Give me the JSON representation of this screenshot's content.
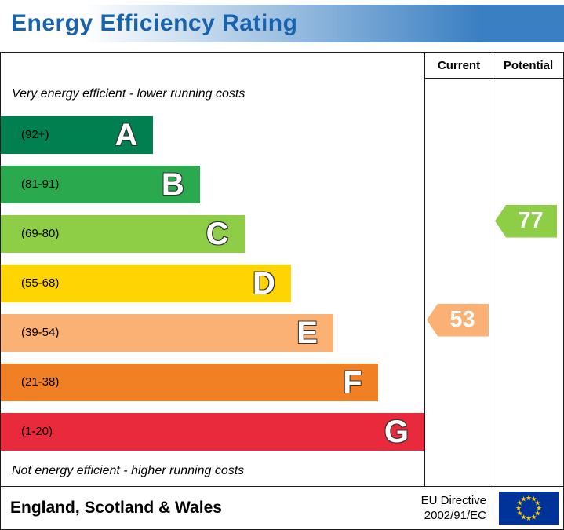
{
  "header": {
    "title": "Energy Efficiency Rating",
    "text_color": "#1763ad",
    "gradient_start": "#ffffff",
    "gradient_end": "#3a7fc2"
  },
  "table": {
    "columns": {
      "current": "Current",
      "potential": "Potential"
    },
    "top_note": "Very energy efficient - lower running costs",
    "bottom_note": "Not energy efficient - higher running costs"
  },
  "chart_data": {
    "type": "bar",
    "title": "Energy Efficiency Rating",
    "bands": [
      {
        "letter": "A",
        "range_label": "(92+)",
        "range": [
          92,
          100
        ],
        "color": "#008050",
        "width_pct": 36
      },
      {
        "letter": "B",
        "range_label": "(81-91)",
        "range": [
          81,
          91
        ],
        "color": "#2aa94f",
        "width_pct": 47
      },
      {
        "letter": "C",
        "range_label": "(69-80)",
        "range": [
          69,
          80
        ],
        "color": "#8dce46",
        "width_pct": 57.5
      },
      {
        "letter": "D",
        "range_label": "(55-68)",
        "range": [
          55,
          68
        ],
        "color": "#fed402",
        "width_pct": 68.5
      },
      {
        "letter": "E",
        "range_label": "(39-54)",
        "range": [
          39,
          54
        ],
        "color": "#fbb174",
        "width_pct": 78.5
      },
      {
        "letter": "F",
        "range_label": "(21-38)",
        "range": [
          21,
          38
        ],
        "color": "#f08023",
        "width_pct": 89
      },
      {
        "letter": "G",
        "range_label": "(1-20)",
        "range": [
          1,
          20
        ],
        "color": "#e9293c",
        "width_pct": 100
      }
    ],
    "current": {
      "value": 53,
      "band": "E",
      "color": "#fbb174"
    },
    "potential": {
      "value": 77,
      "band": "C",
      "color": "#8dce46"
    }
  },
  "footer": {
    "region": "England, Scotland & Wales",
    "directive_line1": "EU Directive",
    "directive_line2": "2002/91/EC",
    "flag": {
      "background": "#003399",
      "star_color": "#ffcc00",
      "star_count": 12
    }
  }
}
